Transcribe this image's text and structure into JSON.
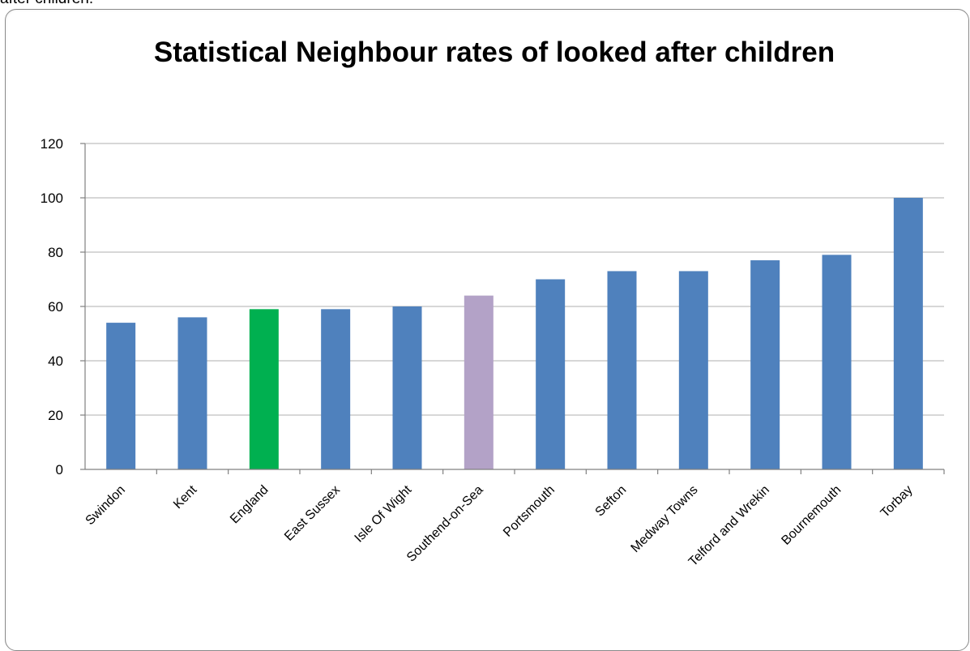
{
  "page": {
    "caption_fragment": "after children."
  },
  "chart_data": {
    "type": "bar",
    "title": "Statistical Neighbour rates of looked after children",
    "xlabel": "",
    "ylabel": "",
    "categories": [
      "Swindon",
      "Kent",
      "England",
      "East Sussex",
      "Isle Of Wight",
      "Southend-on-Sea",
      "Portsmouth",
      "Sefton",
      "Medway Towns",
      "Telford and Wrekin",
      "Bournemouth",
      "Torbay"
    ],
    "values": [
      54,
      56,
      59,
      59,
      60,
      64,
      70,
      73,
      73,
      77,
      79,
      100
    ],
    "ylim": [
      0,
      120
    ],
    "yticks": [
      0,
      20,
      40,
      60,
      80,
      100,
      120
    ],
    "grid": true,
    "legend": "none",
    "colors": {
      "default": "#4f81bd",
      "England": "#00b050",
      "Southend-on-Sea": "#b3a2c7",
      "gridline": "#bfbfbf",
      "axis": "#808080"
    }
  }
}
